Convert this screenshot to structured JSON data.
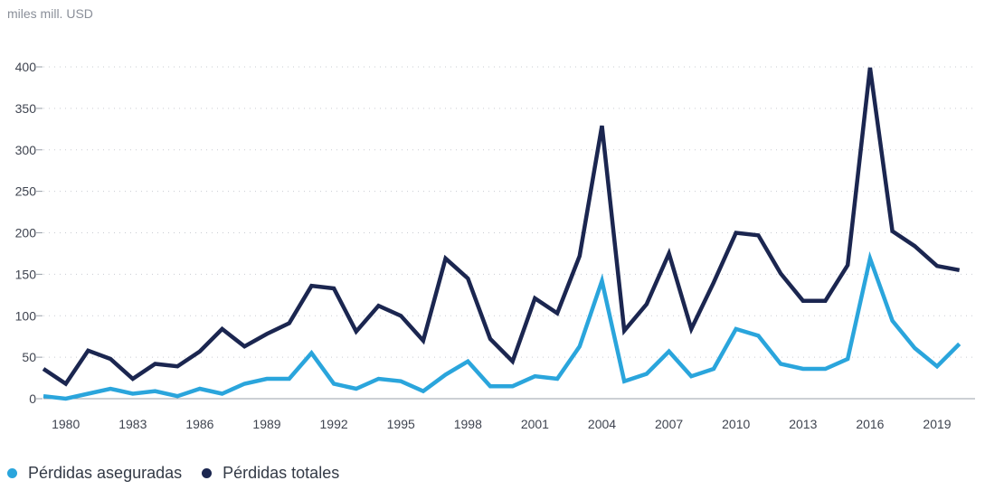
{
  "chart_data": {
    "type": "line",
    "ylabel": "miles mill. USD",
    "ylim": [
      0,
      400
    ],
    "yticks": [
      0,
      50,
      100,
      150,
      200,
      250,
      300,
      350,
      400
    ],
    "xlim": [
      1979,
      2020.7
    ],
    "xticks": [
      "1980",
      "1983",
      "1986",
      "1989",
      "1992",
      "1995",
      "1998",
      "2001",
      "2004",
      "2007",
      "2010",
      "2013",
      "2016",
      "2019"
    ],
    "x": [
      1979,
      1980,
      1981,
      1982,
      1983,
      1984,
      1985,
      1986,
      1987,
      1988,
      1989,
      1990,
      1991,
      1992,
      1993,
      1994,
      1995,
      1996,
      1997,
      1998,
      1999,
      2000,
      2001,
      2002,
      2003,
      2004,
      2005,
      2006,
      2007,
      2008,
      2009,
      2010,
      2011,
      2012,
      2013,
      2014,
      2015,
      2016,
      2017,
      2018,
      2019,
      2020
    ],
    "series": [
      {
        "name": "Pérdidas aseguradas",
        "color": "#2aa5dc",
        "values": [
          3,
          0,
          6,
          12,
          6,
          9,
          3,
          12,
          6,
          18,
          24,
          24,
          55,
          18,
          12,
          24,
          21,
          9,
          29,
          45,
          15,
          15,
          27,
          24,
          63,
          142,
          21,
          30,
          57,
          27,
          36,
          84,
          76,
          42,
          36,
          36,
          48,
          169,
          94,
          61,
          39,
          66
        ]
      },
      {
        "name": "Pérdidas totales",
        "color": "#1b2650",
        "values": [
          36,
          18,
          58,
          48,
          24,
          42,
          39,
          57,
          84,
          63,
          78,
          91,
          136,
          133,
          81,
          112,
          100,
          70,
          169,
          145,
          72,
          45,
          121,
          103,
          172,
          329,
          82,
          114,
          175,
          84,
          140,
          200,
          197,
          151,
          118,
          118,
          161,
          399,
          202,
          184,
          160,
          155
        ]
      }
    ],
    "legend": {
      "position": "bottom-left"
    },
    "grid": true
  }
}
